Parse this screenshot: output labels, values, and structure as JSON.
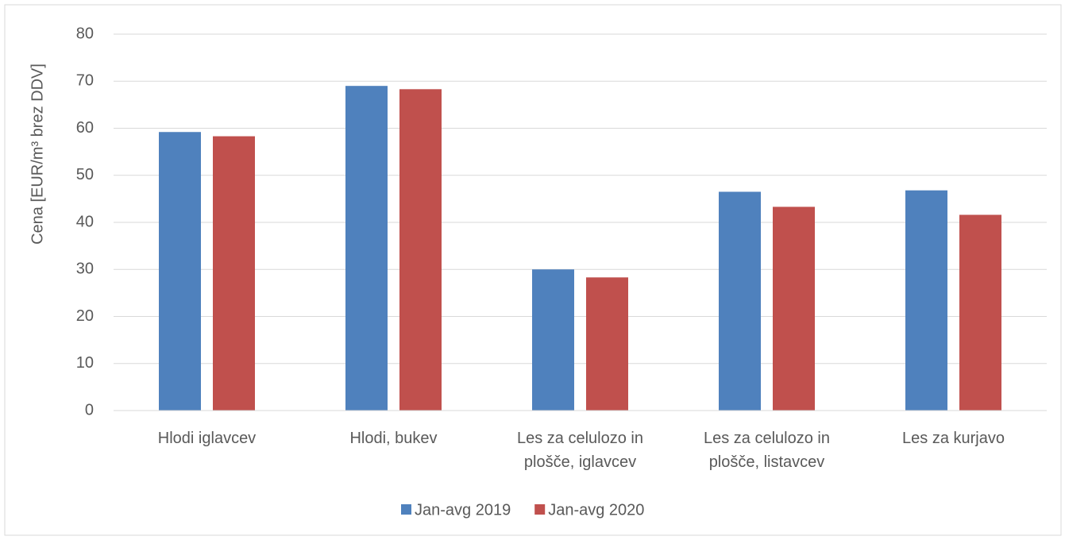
{
  "chart_data": {
    "type": "bar",
    "y_label": "Cena [EUR/m³ brez DDV]",
    "categories": [
      "Hlodi iglavcev",
      "Hlodi, bukev",
      "Les za celulozo in plošče, iglavcev",
      "Les za celulozo in plošče, listavcev",
      "Les za kurjavo"
    ],
    "series": [
      {
        "name": "Jan-avg 2019",
        "color": "#4f81bd",
        "values": [
          59.2,
          69,
          30,
          46.5,
          46.8
        ]
      },
      {
        "name": "Jan-avg 2020",
        "color": "#c0504d",
        "values": [
          58.3,
          68.3,
          28.3,
          43.3,
          41.6
        ]
      }
    ],
    "ylim": [
      0,
      80
    ],
    "yticks": [
      0,
      10,
      20,
      30,
      40,
      50,
      60,
      70,
      80
    ],
    "grid": true,
    "legend": "bottom"
  }
}
